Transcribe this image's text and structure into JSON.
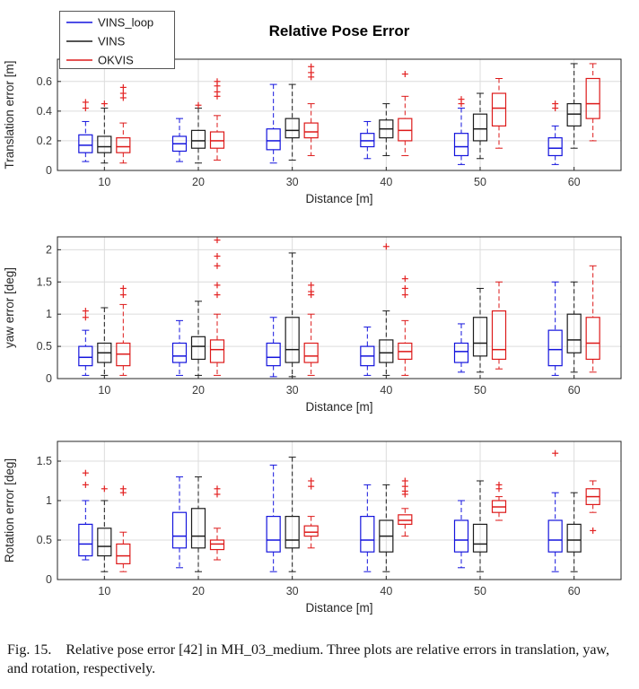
{
  "figure": {
    "caption_label": "Fig. 15.",
    "caption_text": "Relative pose error [42] in MH_03_medium. Three plots are relative errors in translation, yaw, and rotation, respectively."
  },
  "colors": {
    "VINS_loop": "#1414dd",
    "VINS": "#1c1c1c",
    "OKVIS": "#dd1a1a",
    "outlier": "#e32222",
    "grid": "#dcdcdc",
    "axis": "#262626"
  },
  "legend": {
    "entries": [
      "VINS_loop",
      "VINS",
      "OKVIS"
    ]
  },
  "chart_data": [
    {
      "type": "boxplot",
      "title": "Relative Pose Error",
      "ylabel": "Translation error [m]",
      "xlabel": "Distance [m]",
      "categories": [
        "10",
        "20",
        "30",
        "40",
        "50",
        "60"
      ],
      "ylim": [
        0,
        0.75
      ],
      "yticks": [
        0,
        0.2,
        0.4,
        0.6
      ],
      "ytick_labels": [
        "0",
        "0.2",
        "0.4",
        "0.6"
      ],
      "series": [
        {
          "name": "VINS_loop",
          "boxes": [
            {
              "lo": 0.06,
              "q1": 0.12,
              "med": 0.17,
              "q3": 0.24,
              "hi": 0.33,
              "out": [
                0.42,
                0.46
              ]
            },
            {
              "lo": 0.06,
              "q1": 0.13,
              "med": 0.18,
              "q3": 0.23,
              "hi": 0.35,
              "out": []
            },
            {
              "lo": 0.05,
              "q1": 0.14,
              "med": 0.2,
              "q3": 0.28,
              "hi": 0.58,
              "out": []
            },
            {
              "lo": 0.08,
              "q1": 0.16,
              "med": 0.2,
              "q3": 0.25,
              "hi": 0.33,
              "out": []
            },
            {
              "lo": 0.04,
              "q1": 0.1,
              "med": 0.16,
              "q3": 0.25,
              "hi": 0.42,
              "out": [
                0.45,
                0.48
              ]
            },
            {
              "lo": 0.04,
              "q1": 0.1,
              "med": 0.15,
              "q3": 0.22,
              "hi": 0.3,
              "out": [
                0.42,
                0.45
              ]
            }
          ]
        },
        {
          "name": "VINS",
          "boxes": [
            {
              "lo": 0.05,
              "q1": 0.12,
              "med": 0.16,
              "q3": 0.23,
              "hi": 0.42,
              "out": [
                0.45
              ]
            },
            {
              "lo": 0.05,
              "q1": 0.15,
              "med": 0.2,
              "q3": 0.27,
              "hi": 0.42,
              "out": [
                0.44
              ]
            },
            {
              "lo": 0.07,
              "q1": 0.22,
              "med": 0.27,
              "q3": 0.35,
              "hi": 0.58,
              "out": []
            },
            {
              "lo": 0.1,
              "q1": 0.22,
              "med": 0.28,
              "q3": 0.34,
              "hi": 0.45,
              "out": []
            },
            {
              "lo": 0.08,
              "q1": 0.2,
              "med": 0.28,
              "q3": 0.38,
              "hi": 0.52,
              "out": []
            },
            {
              "lo": 0.15,
              "q1": 0.3,
              "med": 0.38,
              "q3": 0.45,
              "hi": 0.72,
              "out": []
            }
          ]
        },
        {
          "name": "OKVIS",
          "boxes": [
            {
              "lo": 0.05,
              "q1": 0.12,
              "med": 0.16,
              "q3": 0.22,
              "hi": 0.32,
              "out": [
                0.49,
                0.52,
                0.56
              ]
            },
            {
              "lo": 0.07,
              "q1": 0.15,
              "med": 0.2,
              "q3": 0.26,
              "hi": 0.37,
              "out": [
                0.5,
                0.53,
                0.57,
                0.6
              ]
            },
            {
              "lo": 0.1,
              "q1": 0.22,
              "med": 0.26,
              "q3": 0.32,
              "hi": 0.45,
              "out": [
                0.63,
                0.66,
                0.7
              ]
            },
            {
              "lo": 0.1,
              "q1": 0.2,
              "med": 0.27,
              "q3": 0.35,
              "hi": 0.5,
              "out": [
                0.65
              ]
            },
            {
              "lo": 0.15,
              "q1": 0.3,
              "med": 0.42,
              "q3": 0.52,
              "hi": 0.62,
              "out": []
            },
            {
              "lo": 0.2,
              "q1": 0.35,
              "med": 0.45,
              "q3": 0.62,
              "hi": 0.72,
              "out": []
            }
          ]
        }
      ]
    },
    {
      "type": "boxplot",
      "title": "",
      "ylabel": "yaw error [deg]",
      "xlabel": "Distance [m]",
      "categories": [
        "10",
        "20",
        "30",
        "40",
        "50",
        "60"
      ],
      "ylim": [
        0,
        2.2
      ],
      "yticks": [
        0,
        0.5,
        1,
        1.5,
        2
      ],
      "ytick_labels": [
        "0",
        "0.5",
        "1",
        "1.5",
        "2"
      ],
      "series": [
        {
          "name": "VINS_loop",
          "boxes": [
            {
              "lo": 0.05,
              "q1": 0.2,
              "med": 0.33,
              "q3": 0.5,
              "hi": 0.75,
              "out": [
                0.95,
                1.05
              ]
            },
            {
              "lo": 0.05,
              "q1": 0.25,
              "med": 0.35,
              "q3": 0.55,
              "hi": 0.9,
              "out": []
            },
            {
              "lo": 0.03,
              "q1": 0.2,
              "med": 0.33,
              "q3": 0.55,
              "hi": 0.95,
              "out": []
            },
            {
              "lo": 0.05,
              "q1": 0.2,
              "med": 0.35,
              "q3": 0.5,
              "hi": 0.8,
              "out": []
            },
            {
              "lo": 0.1,
              "q1": 0.25,
              "med": 0.42,
              "q3": 0.55,
              "hi": 0.85,
              "out": []
            },
            {
              "lo": 0.05,
              "q1": 0.2,
              "med": 0.45,
              "q3": 0.75,
              "hi": 1.5,
              "out": []
            }
          ]
        },
        {
          "name": "VINS",
          "boxes": [
            {
              "lo": 0.05,
              "q1": 0.25,
              "med": 0.4,
              "q3": 0.55,
              "hi": 1.1,
              "out": []
            },
            {
              "lo": 0.05,
              "q1": 0.3,
              "med": 0.5,
              "q3": 0.65,
              "hi": 1.2,
              "out": []
            },
            {
              "lo": 0.03,
              "q1": 0.25,
              "med": 0.45,
              "q3": 0.95,
              "hi": 1.95,
              "out": []
            },
            {
              "lo": 0.05,
              "q1": 0.25,
              "med": 0.4,
              "q3": 0.6,
              "hi": 1.05,
              "out": [
                2.05
              ]
            },
            {
              "lo": 0.1,
              "q1": 0.35,
              "med": 0.55,
              "q3": 0.95,
              "hi": 1.4,
              "out": []
            },
            {
              "lo": 0.1,
              "q1": 0.4,
              "med": 0.6,
              "q3": 1.0,
              "hi": 1.5,
              "out": []
            }
          ]
        },
        {
          "name": "OKVIS",
          "boxes": [
            {
              "lo": 0.05,
              "q1": 0.2,
              "med": 0.38,
              "q3": 0.55,
              "hi": 1.15,
              "out": [
                1.3,
                1.4
              ]
            },
            {
              "lo": 0.05,
              "q1": 0.25,
              "med": 0.45,
              "q3": 0.6,
              "hi": 1.0,
              "out": [
                1.3,
                1.45,
                1.75,
                1.9,
                2.15
              ]
            },
            {
              "lo": 0.05,
              "q1": 0.25,
              "med": 0.35,
              "q3": 0.55,
              "hi": 1.0,
              "out": [
                1.3,
                1.35,
                1.45
              ]
            },
            {
              "lo": 0.05,
              "q1": 0.3,
              "med": 0.42,
              "q3": 0.55,
              "hi": 0.9,
              "out": [
                1.3,
                1.4,
                1.55
              ]
            },
            {
              "lo": 0.15,
              "q1": 0.3,
              "med": 0.45,
              "q3": 1.05,
              "hi": 1.5,
              "out": []
            },
            {
              "lo": 0.1,
              "q1": 0.3,
              "med": 0.55,
              "q3": 0.95,
              "hi": 1.75,
              "out": []
            }
          ]
        }
      ]
    },
    {
      "type": "boxplot",
      "title": "",
      "ylabel": "Rotation error [deg]",
      "xlabel": "Distance [m]",
      "categories": [
        "10",
        "20",
        "30",
        "40",
        "50",
        "60"
      ],
      "ylim": [
        0,
        1.75
      ],
      "yticks": [
        0,
        0.5,
        1,
        1.5
      ],
      "ytick_labels": [
        "0",
        "0.5",
        "1",
        "1.5"
      ],
      "series": [
        {
          "name": "VINS_loop",
          "boxes": [
            {
              "lo": 0.25,
              "q1": 0.3,
              "med": 0.45,
              "q3": 0.7,
              "hi": 1.0,
              "out": [
                1.2,
                1.35
              ]
            },
            {
              "lo": 0.15,
              "q1": 0.4,
              "med": 0.55,
              "q3": 0.85,
              "hi": 1.3,
              "out": []
            },
            {
              "lo": 0.1,
              "q1": 0.35,
              "med": 0.5,
              "q3": 0.8,
              "hi": 1.45,
              "out": []
            },
            {
              "lo": 0.1,
              "q1": 0.35,
              "med": 0.5,
              "q3": 0.8,
              "hi": 1.2,
              "out": []
            },
            {
              "lo": 0.15,
              "q1": 0.35,
              "med": 0.5,
              "q3": 0.75,
              "hi": 1.0,
              "out": []
            },
            {
              "lo": 0.1,
              "q1": 0.35,
              "med": 0.5,
              "q3": 0.75,
              "hi": 1.1,
              "out": [
                1.6
              ]
            }
          ]
        },
        {
          "name": "VINS",
          "boxes": [
            {
              "lo": 0.1,
              "q1": 0.3,
              "med": 0.42,
              "q3": 0.65,
              "hi": 1.0,
              "out": [
                1.15
              ]
            },
            {
              "lo": 0.1,
              "q1": 0.4,
              "med": 0.55,
              "q3": 0.9,
              "hi": 1.3,
              "out": []
            },
            {
              "lo": 0.1,
              "q1": 0.4,
              "med": 0.5,
              "q3": 0.8,
              "hi": 1.55,
              "out": []
            },
            {
              "lo": 0.1,
              "q1": 0.35,
              "med": 0.55,
              "q3": 0.75,
              "hi": 1.2,
              "out": []
            },
            {
              "lo": 0.1,
              "q1": 0.35,
              "med": 0.45,
              "q3": 0.7,
              "hi": 1.25,
              "out": []
            },
            {
              "lo": 0.1,
              "q1": 0.35,
              "med": 0.5,
              "q3": 0.7,
              "hi": 1.1,
              "out": []
            }
          ]
        },
        {
          "name": "OKVIS",
          "boxes": [
            {
              "lo": 0.1,
              "q1": 0.2,
              "med": 0.3,
              "q3": 0.45,
              "hi": 0.6,
              "out": [
                1.1,
                1.15
              ]
            },
            {
              "lo": 0.25,
              "q1": 0.38,
              "med": 0.45,
              "q3": 0.5,
              "hi": 0.65,
              "out": [
                1.08,
                1.15
              ]
            },
            {
              "lo": 0.4,
              "q1": 0.55,
              "med": 0.6,
              "q3": 0.68,
              "hi": 0.8,
              "out": [
                1.18,
                1.25
              ]
            },
            {
              "lo": 0.55,
              "q1": 0.7,
              "med": 0.75,
              "q3": 0.82,
              "hi": 0.9,
              "out": [
                1.08,
                1.12,
                1.18,
                1.25
              ]
            },
            {
              "lo": 0.75,
              "q1": 0.85,
              "med": 0.92,
              "q3": 1.0,
              "hi": 1.05,
              "out": [
                1.15,
                1.2
              ]
            },
            {
              "lo": 0.85,
              "q1": 0.95,
              "med": 1.05,
              "q3": 1.15,
              "hi": 1.25,
              "out": [
                0.62
              ]
            }
          ]
        }
      ]
    }
  ]
}
